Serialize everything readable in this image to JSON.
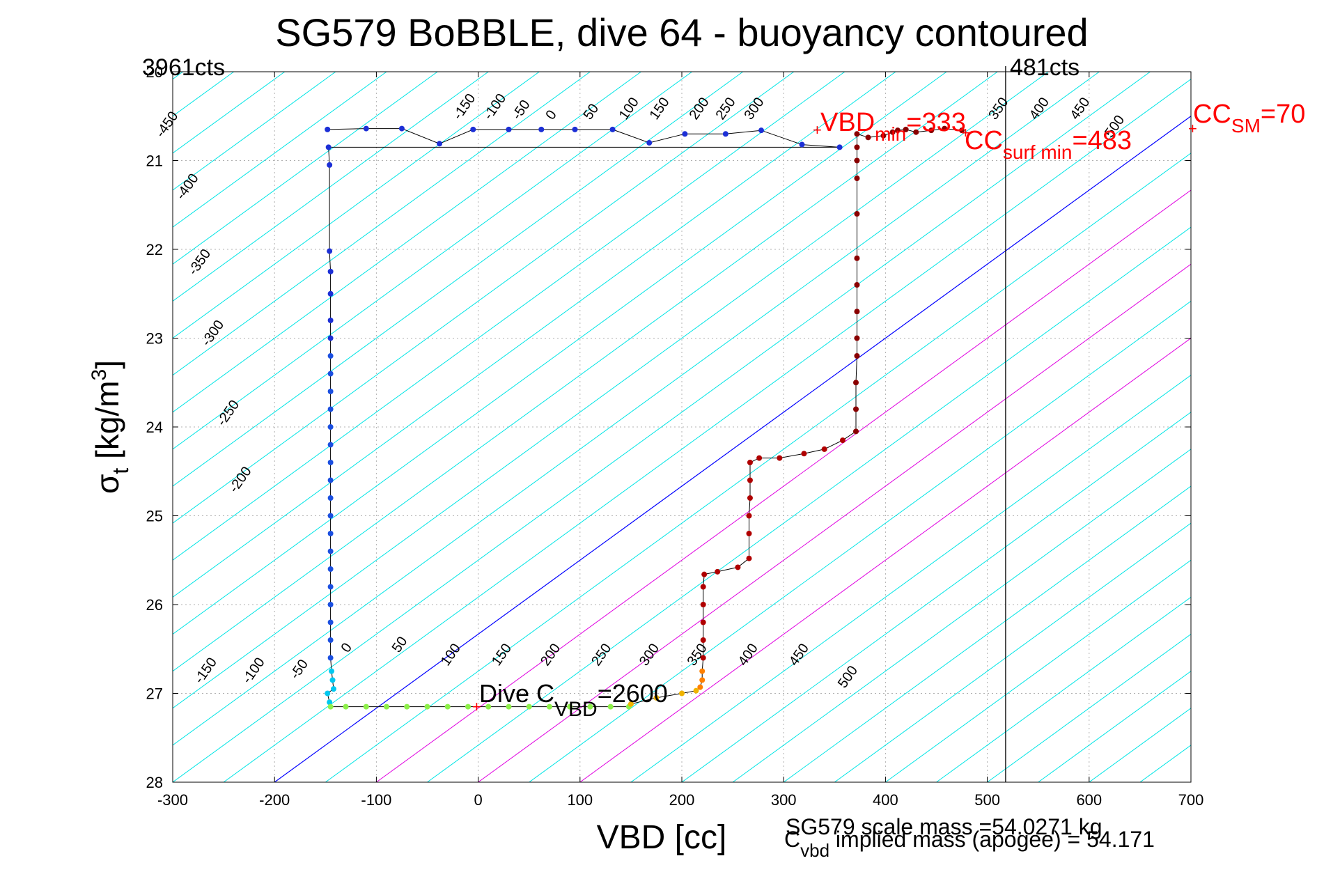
{
  "chart_data": {
    "type": "scatter",
    "title": "SG579 BoBBLE, dive 64 - buoyancy contoured",
    "xlabel": "VBD [cc]",
    "ylabel_main": "σ",
    "ylabel_sub": "t",
    "ylabel_unit": " [kg/m",
    "ylabel_sup": "3",
    "ylabel_close": "]",
    "xlim": [
      -300,
      700
    ],
    "ylim": [
      20,
      28
    ],
    "y_reversed": true,
    "grid": true,
    "x_ticks": [
      "-300",
      "-200",
      "-100",
      "0",
      "100",
      "200",
      "300",
      "400",
      "500",
      "600",
      "700"
    ],
    "y_ticks": [
      "20",
      "21",
      "22",
      "23",
      "24",
      "25",
      "26",
      "27",
      "28"
    ],
    "left_top_label": "3961cts",
    "right_top_label": "481cts",
    "vertical_line_x": 518,
    "colors": {
      "contour": "#00e5e5",
      "zero_contour": "#0000ff",
      "magenta_contour": "#e000e0",
      "trace": "#000000",
      "annotation": "#ff0000"
    },
    "contour_labels_top": [
      "-450",
      "-400",
      "-350",
      "-300",
      "-250",
      "-200",
      "-150",
      "-100",
      "-50",
      "0",
      "50",
      "100",
      "150",
      "200",
      "250",
      "300",
      "350",
      "400",
      "450",
      "500"
    ],
    "contour_labels_bottom": [
      "-150",
      "-100",
      "-50",
      "0",
      "50",
      "100",
      "150",
      "200",
      "250",
      "300",
      "350",
      "400",
      "450",
      "500"
    ],
    "annotations": {
      "vbd_min_main": "VBD",
      "vbd_min_sub": "min",
      "vbd_min_value": "=333",
      "cc_surf_main": "CC",
      "cc_surf_sub": "surf min",
      "cc_surf_value": "=483",
      "cc_sm_main": "CC",
      "cc_sm_sub": "SM",
      "cc_sm_value": "=70",
      "dive_cvbd_main": "Dive C",
      "dive_cvbd_sub": "VBD",
      "dive_cvbd_value": "=2600",
      "scale_mass": "SG579 scale mass =54.0271 kg",
      "implied_main": "C",
      "implied_sub": "vbd",
      "implied_value": " implied mass (apogee) = 54.171"
    },
    "series": [
      {
        "color_note": "descent: blue near surface, cyan at depth",
        "points": [
          [
            -148,
            20.65
          ],
          [
            -110,
            20.64
          ],
          [
            -75,
            20.64
          ],
          [
            -38,
            20.81
          ],
          [
            -5,
            20.65
          ],
          [
            30,
            20.65
          ],
          [
            62,
            20.65
          ],
          [
            95,
            20.65
          ],
          [
            132,
            20.65
          ],
          [
            168,
            20.8
          ],
          [
            203,
            20.7
          ],
          [
            243,
            20.7
          ],
          [
            278,
            20.66
          ],
          [
            318,
            20.82
          ],
          [
            355,
            20.85
          ],
          [
            -147,
            20.85
          ],
          [
            -146,
            21.05
          ],
          [
            -146,
            22.02
          ],
          [
            -145,
            22.25
          ],
          [
            -145,
            22.5
          ],
          [
            -145,
            22.8
          ],
          [
            -145,
            23.0
          ],
          [
            -145,
            23.2
          ],
          [
            -145,
            23.4
          ],
          [
            -145,
            23.6
          ],
          [
            -145,
            23.8
          ],
          [
            -145,
            24.0
          ],
          [
            -145,
            24.2
          ],
          [
            -145,
            24.4
          ],
          [
            -145,
            24.6
          ],
          [
            -145,
            24.8
          ],
          [
            -145,
            25.0
          ],
          [
            -145,
            25.2
          ],
          [
            -145,
            25.4
          ],
          [
            -145,
            25.6
          ],
          [
            -145,
            25.8
          ],
          [
            -145,
            26.0
          ],
          [
            -145,
            26.2
          ],
          [
            -145,
            26.4
          ],
          [
            -145,
            26.6
          ],
          [
            -144,
            26.75
          ],
          [
            -143,
            26.85
          ],
          [
            -142,
            26.95
          ],
          [
            -148,
            27.0
          ],
          [
            -146,
            27.1
          ]
        ]
      },
      {
        "color_note": "apogee: green",
        "points": [
          [
            -145,
            27.15
          ],
          [
            -130,
            27.15
          ],
          [
            -110,
            27.15
          ],
          [
            -90,
            27.15
          ],
          [
            -70,
            27.15
          ],
          [
            -50,
            27.15
          ],
          [
            -30,
            27.15
          ],
          [
            -10,
            27.15
          ],
          [
            10,
            27.15
          ],
          [
            30,
            27.15
          ],
          [
            50,
            27.15
          ],
          [
            70,
            27.15
          ],
          [
            90,
            27.15
          ],
          [
            110,
            27.15
          ],
          [
            130,
            27.15
          ],
          [
            148,
            27.15
          ]
        ]
      },
      {
        "color_note": "climb start: yellow/orange",
        "points": [
          [
            150,
            27.12
          ],
          [
            175,
            27.05
          ],
          [
            200,
            27.0
          ],
          [
            214,
            26.97
          ],
          [
            218,
            26.93
          ],
          [
            220,
            26.85
          ],
          [
            220,
            26.75
          ]
        ]
      },
      {
        "color_note": "ascent: red / dark red",
        "points": [
          [
            221,
            26.6
          ],
          [
            221,
            26.4
          ],
          [
            221,
            26.2
          ],
          [
            221,
            26.0
          ],
          [
            221,
            25.8
          ],
          [
            222,
            25.66
          ],
          [
            235,
            25.63
          ],
          [
            255,
            25.58
          ],
          [
            266,
            25.48
          ],
          [
            266,
            25.2
          ],
          [
            266,
            25.0
          ],
          [
            267,
            24.8
          ],
          [
            267,
            24.6
          ],
          [
            267,
            24.4
          ],
          [
            276,
            24.35
          ],
          [
            296,
            24.35
          ],
          [
            320,
            24.3
          ],
          [
            340,
            24.25
          ],
          [
            358,
            24.15
          ],
          [
            371,
            24.05
          ],
          [
            371,
            23.8
          ],
          [
            371,
            23.5
          ],
          [
            372,
            23.2
          ],
          [
            372,
            23.0
          ],
          [
            372,
            22.7
          ],
          [
            372,
            22.4
          ],
          [
            372,
            22.1
          ],
          [
            372,
            21.6
          ],
          [
            372,
            21.2
          ],
          [
            372,
            21.0
          ],
          [
            372,
            20.85
          ],
          [
            372,
            20.7
          ],
          [
            383,
            20.74
          ],
          [
            398,
            20.72
          ],
          [
            407,
            20.68
          ],
          [
            412,
            20.66
          ],
          [
            420,
            20.65
          ],
          [
            430,
            20.68
          ],
          [
            445,
            20.66
          ],
          [
            458,
            20.64
          ],
          [
            475,
            20.66
          ]
        ]
      }
    ]
  }
}
